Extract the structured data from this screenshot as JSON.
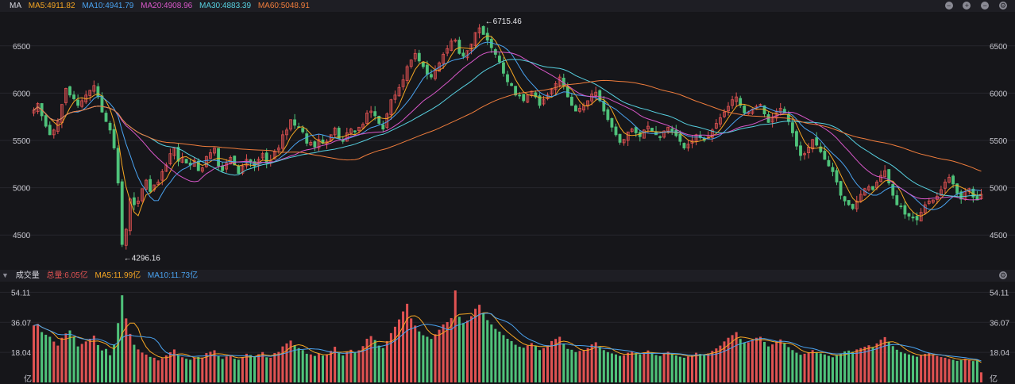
{
  "price_legend": {
    "title": "MA",
    "items": [
      {
        "text": "MA5:4911.82",
        "color": "#f5a623"
      },
      {
        "text": "MA10:4941.79",
        "color": "#4aa3f0"
      },
      {
        "text": "MA20:4908.96",
        "color": "#d857c9"
      },
      {
        "text": "MA30:4883.39",
        "color": "#57d0e0"
      },
      {
        "text": "MA60:5048.91",
        "color": "#f07d3c"
      }
    ]
  },
  "volume_legend": {
    "title": "成交量",
    "items": [
      {
        "text": "总量:6.05亿",
        "color": "#e05252"
      },
      {
        "text": "MA5:11.99亿",
        "color": "#f5a623"
      },
      {
        "text": "MA10:11.73亿",
        "color": "#4aa3f0"
      }
    ]
  },
  "controls": [
    "minus-icon",
    "plus-icon",
    "collapse-icon",
    "gear-icon"
  ],
  "chart_data": [
    {
      "type": "candlestick",
      "yticks": [
        "4500",
        "5000",
        "5500",
        "6000",
        "6500"
      ],
      "ylim": [
        4200,
        6800
      ],
      "annotations": [
        {
          "text": "←6715.46",
          "index": 112,
          "value": 6715.46
        },
        {
          "text": "←4296.16",
          "index": 22,
          "value": 4296.16
        }
      ],
      "colors": {
        "up": "#e05252",
        "down": "#4fc27a"
      },
      "ma_series": [
        {
          "name": "MA5",
          "color": "#f5a623"
        },
        {
          "name": "MA10",
          "color": "#4aa3f0"
        },
        {
          "name": "MA20",
          "color": "#d857c9"
        },
        {
          "name": "MA30",
          "color": "#57d0e0"
        },
        {
          "name": "MA60",
          "color": "#f07d3c"
        }
      ],
      "close": [
        5820,
        5890,
        5760,
        5650,
        5560,
        5610,
        5700,
        5880,
        6050,
        5980,
        5940,
        5870,
        5920,
        5980,
        6030,
        6080,
        5960,
        5800,
        5700,
        5610,
        5420,
        5050,
        4400,
        4560,
        4880,
        4820,
        4860,
        4990,
        5080,
        4960,
        5030,
        5060,
        5170,
        5240,
        5360,
        5420,
        5280,
        5320,
        5260,
        5240,
        5290,
        5180,
        5210,
        5330,
        5370,
        5420,
        5230,
        5180,
        5260,
        5320,
        5240,
        5150,
        5230,
        5300,
        5270,
        5230,
        5300,
        5360,
        5260,
        5290,
        5380,
        5420,
        5560,
        5610,
        5720,
        5660,
        5640,
        5590,
        5470,
        5480,
        5430,
        5510,
        5470,
        5490,
        5560,
        5630,
        5520,
        5490,
        5580,
        5620,
        5590,
        5640,
        5670,
        5790,
        5810,
        5760,
        5680,
        5620,
        5780,
        5930,
        5980,
        6060,
        6140,
        6280,
        6350,
        6420,
        6340,
        6280,
        6200,
        6170,
        6240,
        6320,
        6410,
        6470,
        6550,
        6560,
        6420,
        6390,
        6450,
        6520,
        6640,
        6690,
        6620,
        6560,
        6480,
        6410,
        6330,
        6210,
        6120,
        6080,
        5980,
        5970,
        5920,
        5980,
        6020,
        5960,
        5870,
        5930,
        5980,
        6040,
        6100,
        6170,
        6080,
        5960,
        5870,
        5810,
        5840,
        5870,
        5920,
        5990,
        6010,
        5920,
        5810,
        5720,
        5640,
        5560,
        5480,
        5510,
        5590,
        5620,
        5580,
        5540,
        5610,
        5650,
        5600,
        5560,
        5530,
        5600,
        5640,
        5600,
        5550,
        5490,
        5420,
        5460,
        5500,
        5560,
        5530,
        5500,
        5540,
        5610,
        5680,
        5740,
        5800,
        5860,
        5930,
        5960,
        5870,
        5790,
        5800,
        5830,
        5860,
        5880,
        5780,
        5690,
        5740,
        5810,
        5840,
        5790,
        5700,
        5580,
        5440,
        5340,
        5360,
        5430,
        5510,
        5450,
        5380,
        5300,
        5230,
        5170,
        5060,
        4920,
        4860,
        4820,
        4780,
        4860,
        4930,
        4990,
        5010,
        4980,
        5060,
        5130,
        5180,
        5050,
        4920,
        4820,
        4800,
        4720,
        4700,
        4680,
        4660,
        4740,
        4820,
        4860,
        4870,
        4910,
        4980,
        5060,
        5110,
        5040,
        4940,
        4880,
        4960,
        4990,
        4900,
        4870,
        4930
      ]
    },
    {
      "type": "bar",
      "yticks": [
        "18.04",
        "36.07",
        "54.11"
      ],
      "unit": "亿",
      "ylim": [
        0,
        60
      ],
      "values": [
        34.2,
        35.1,
        30.2,
        28.6,
        27.4,
        24.5,
        22.1,
        26.8,
        29.4,
        31.2,
        27.5,
        21.6,
        23.1,
        24.6,
        26.2,
        28.1,
        22.4,
        19.2,
        20.1,
        16.3,
        22.8,
        35.6,
        52.3,
        38.4,
        29.1,
        22.6,
        19.8,
        17.9,
        16.7,
        15.3,
        14.8,
        13.2,
        14.6,
        16.2,
        18.1,
        19.8,
        16.4,
        15.1,
        14.2,
        13.6,
        14.8,
        15.3,
        14.9,
        17.6,
        18.4,
        19.3,
        15.8,
        14.1,
        15.6,
        16.4,
        14.2,
        13.6,
        15.1,
        17.2,
        16.4,
        15.3,
        16.9,
        18.2,
        15.1,
        14.8,
        17.6,
        18.3,
        21.6,
        23.4,
        25.1,
        22.3,
        20.6,
        19.4,
        17.2,
        16.8,
        15.9,
        17.4,
        16.1,
        16.8,
        18.9,
        21.4,
        17.6,
        16.2,
        18.4,
        19.6,
        18.1,
        19.3,
        21.8,
        26.2,
        27.8,
        25.4,
        22.1,
        20.6,
        24.8,
        29.6,
        33.4,
        37.8,
        42.6,
        47.2,
        38.4,
        34.1,
        30.6,
        28.3,
        27.4,
        26.1,
        28.9,
        31.6,
        34.8,
        36.2,
        38.6,
        55.2,
        39.4,
        35.6,
        37.1,
        39.8,
        44.2,
        46.6,
        41.2,
        37.4,
        34.8,
        32.1,
        30.5,
        28.4,
        26.2,
        24.8,
        22.6,
        21.4,
        20.8,
        22.1,
        23.6,
        21.8,
        19.4,
        20.6,
        22.3,
        24.8,
        26.1,
        27.4,
        23.2,
        20.1,
        19.6,
        18.2,
        18.9,
        19.4,
        20.6,
        22.8,
        24.1,
        21.3,
        19.4,
        18.2,
        17.4,
        16.8,
        15.9,
        16.3,
        17.8,
        18.4,
        17.6,
        16.9,
        18.1,
        19.2,
        17.8,
        16.4,
        15.8,
        17.2,
        18.4,
        17.1,
        16.2,
        15.4,
        14.8,
        15.6,
        16.4,
        17.8,
        17.1,
        16.6,
        17.4,
        18.9,
        20.4,
        22.1,
        24.6,
        26.8,
        28.4,
        30.2,
        26.1,
        23.8,
        24.1,
        25.6,
        26.8,
        27.4,
        24.3,
        21.6,
        22.8,
        24.6,
        25.8,
        23.4,
        21.2,
        19.4,
        17.8,
        16.6,
        17.2,
        18.1,
        19.4,
        18.2,
        17.4,
        16.8,
        15.9,
        15.1,
        16.2,
        17.4,
        18.6,
        19.1,
        18.4,
        19.8,
        20.6,
        21.4,
        22.3,
        21.1,
        23.4,
        25.6,
        27.2,
        24.1,
        21.8,
        19.6,
        18.2,
        17.4,
        16.8,
        16.1,
        15.4,
        16.3,
        17.1,
        17.8,
        16.6,
        15.9,
        15.2,
        14.8,
        14.1,
        13.6,
        12.9,
        13.4,
        14.2,
        13.6,
        12.8,
        13.1,
        6.05
      ],
      "ma_series": [
        {
          "name": "MA5",
          "color": "#f5a623"
        },
        {
          "name": "MA10",
          "color": "#4aa3f0"
        }
      ]
    }
  ]
}
